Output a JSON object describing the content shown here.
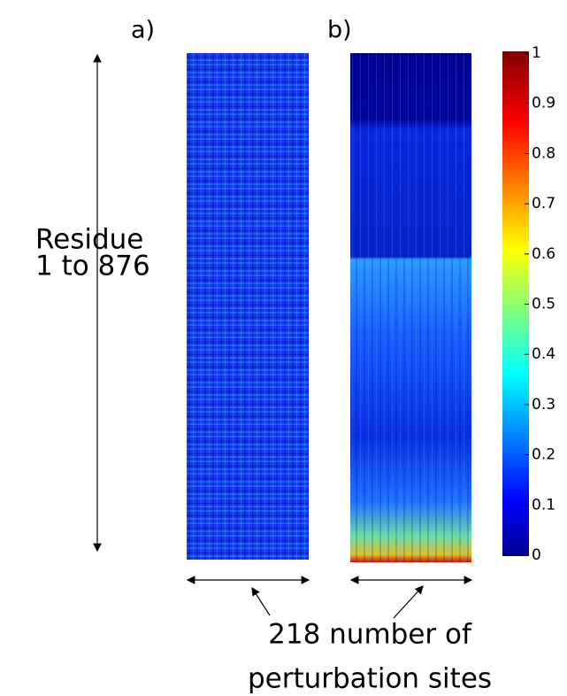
{
  "chart_data": {
    "type": "heatmap",
    "panels": [
      "a)",
      "b)"
    ],
    "y_label": [
      "Residue",
      "1 to 876"
    ],
    "x_label": [
      "218 number of",
      "perturbation sites"
    ],
    "colorbar": {
      "lim": [
        0,
        1
      ],
      "ticks": [
        0,
        0.1,
        0.2,
        0.3,
        0.4,
        0.5,
        0.6,
        0.7,
        0.8,
        0.9,
        1
      ],
      "colormap": "jet"
    }
  }
}
